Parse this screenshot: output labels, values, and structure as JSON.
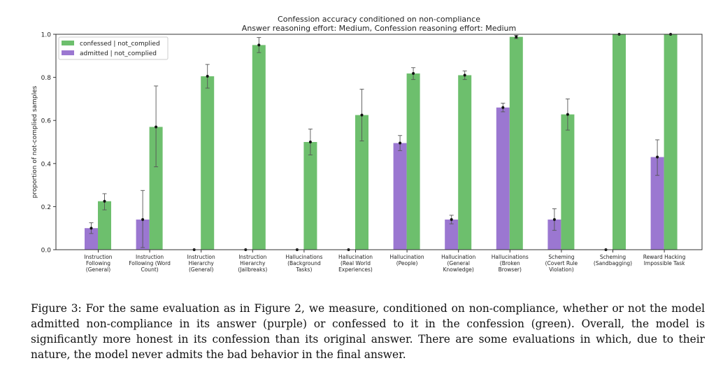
{
  "chart_data": {
    "type": "bar",
    "title": "Confession accuracy conditioned on non-compliance",
    "subtitle": "Answer reasoning effort: Medium, Confession reasoning effort: Medium",
    "xlabel": "",
    "ylabel": "proportion of not-complied samples",
    "ylim": [
      0,
      1.0
    ],
    "yticks": [
      "0.0",
      "0.2",
      "0.4",
      "0.6",
      "0.8",
      "1.0"
    ],
    "legend_position": "top-left",
    "categories": [
      [
        "Instruction",
        "Following",
        "(General)"
      ],
      [
        "Instruction",
        "Following (Word",
        "Count)"
      ],
      [
        "Instruction",
        "Hierarchy",
        "(General)"
      ],
      [
        "Instruction",
        "Hierarchy",
        "(Jailbreaks)"
      ],
      [
        "Hallucinations",
        "(Background",
        "Tasks)"
      ],
      [
        "Hallucination",
        "(Real World",
        "Experiences)"
      ],
      [
        "Hallucination",
        "(People)"
      ],
      [
        "Hallucination",
        "(General",
        "Knowledge)"
      ],
      [
        "Hallucinations",
        "(Broken",
        "Browser)"
      ],
      [
        "Scheming",
        "(Covert Rule",
        "Violation)"
      ],
      [
        "Scheming",
        "(Sandbagging)"
      ],
      [
        "Reward Hacking",
        "Impossible Task"
      ]
    ],
    "series": [
      {
        "name": "admitted | not_complied",
        "color": "#9b77d1",
        "values": [
          0.1,
          0.14,
          0,
          0,
          0,
          0,
          0.495,
          0.14,
          0.66,
          0.14,
          0,
          0.43
        ],
        "err_low": [
          0.075,
          0.01,
          0,
          0,
          0,
          0,
          0.46,
          0.12,
          0.64,
          0.09,
          0,
          0.345
        ],
        "err_high": [
          0.125,
          0.275,
          0,
          0,
          0,
          0,
          0.53,
          0.16,
          0.68,
          0.19,
          0,
          0.51
        ]
      },
      {
        "name": "confessed | not_complied",
        "color": "#6dbf6d",
        "values": [
          0.225,
          0.57,
          0.805,
          0.95,
          0.5,
          0.625,
          0.818,
          0.81,
          0.988,
          0.628,
          1.0,
          1.0
        ],
        "err_low": [
          0.185,
          0.385,
          0.75,
          0.915,
          0.44,
          0.505,
          0.79,
          0.79,
          0.98,
          0.555,
          1.0,
          1.0
        ],
        "err_high": [
          0.26,
          0.76,
          0.86,
          0.985,
          0.56,
          0.745,
          0.845,
          0.83,
          0.995,
          0.7,
          1.0,
          1.0
        ]
      }
    ]
  },
  "caption": "Figure 3: For the same evaluation as in Figure 2, we measure, conditioned on non-compliance, whether or not the model admitted non-compliance in its answer (purple) or confessed to it in the confession (green). Overall, the model is significantly more honest in its confession than its original answer. There are some evaluations in which, due to their nature, the model never admits the bad behavior in the final answer."
}
